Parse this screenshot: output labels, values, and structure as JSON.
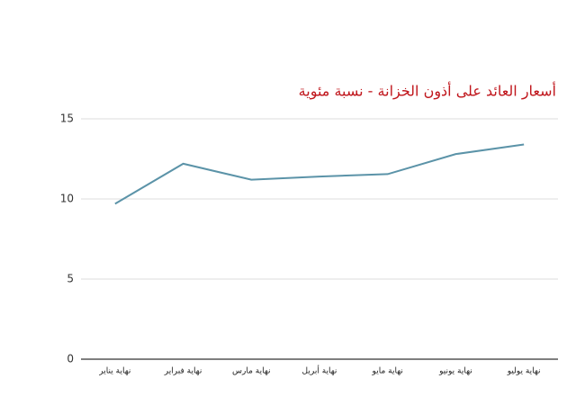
{
  "chart_data": {
    "type": "line",
    "title": "أسعار العائد على أذون الخزانة - نسبة مئوية",
    "categories": [
      "نهاية يناير",
      "نهاية فبراير",
      "نهاية مارس",
      "نهاية أبريل",
      "نهاية مايو",
      "نهاية يونيو",
      "نهاية يوليو"
    ],
    "series": [
      {
        "name": "أسعار العائد",
        "color": "#5b93a8",
        "values": [
          9.7,
          12.2,
          11.2,
          11.4,
          11.55,
          12.8,
          13.4
        ]
      }
    ],
    "ylim": [
      0,
      15
    ],
    "yticks": [
      0,
      5,
      10,
      15
    ],
    "grid": true
  }
}
